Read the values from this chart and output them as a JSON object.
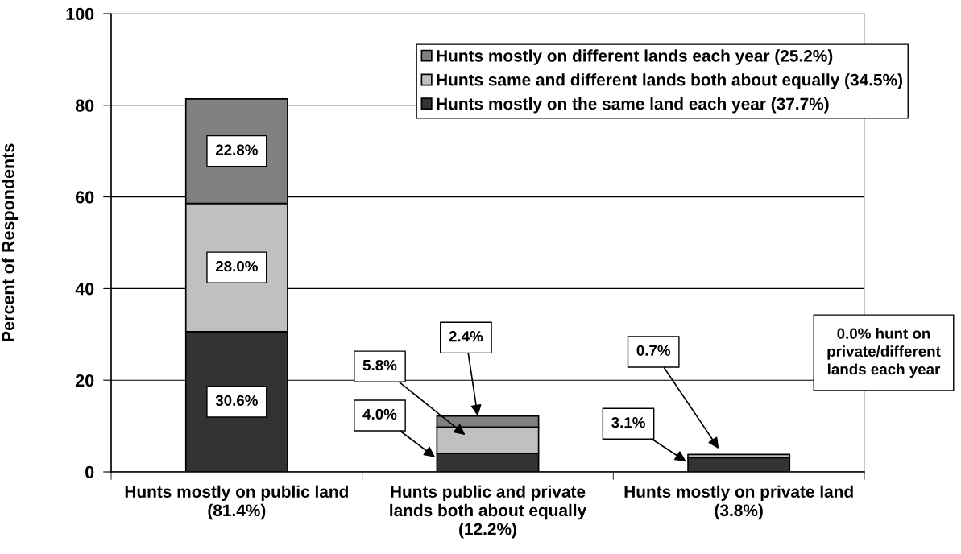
{
  "chart_data": {
    "type": "bar",
    "stacked": true,
    "ylabel": "Percent of Respondents",
    "categories": [
      "Hunts mostly on public land\n(81.4%)",
      "Hunts public and private\nlands both about equally\n(12.2%)",
      "Hunts mostly on private land\n(3.8%)"
    ],
    "series": [
      {
        "name": "Hunts mostly on the same land each year (37.7%)",
        "color": "#333333",
        "values": [
          30.6,
          4.0,
          3.1
        ],
        "value_labels": [
          "30.6%",
          "4.0%",
          "3.1%"
        ]
      },
      {
        "name": "Hunts same and different lands both about equally (34.5%)",
        "color": "#c0c0c0",
        "values": [
          28.0,
          5.8,
          0.7
        ],
        "value_labels": [
          "28.0%",
          "5.8%",
          "0.7%"
        ]
      },
      {
        "name": "Hunts mostly on different lands each year (25.2%)",
        "color": "#808080",
        "values": [
          22.8,
          2.4,
          0.0
        ],
        "value_labels": [
          "22.8%",
          "2.4%",
          null
        ]
      }
    ],
    "ylim": [
      0,
      100
    ],
    "yticks": [
      0,
      20,
      40,
      60,
      80,
      100
    ],
    "grid": "y",
    "legend": "top right",
    "annotations": [
      "0.0% hunt on\nprivate/different\nlands each year"
    ]
  }
}
